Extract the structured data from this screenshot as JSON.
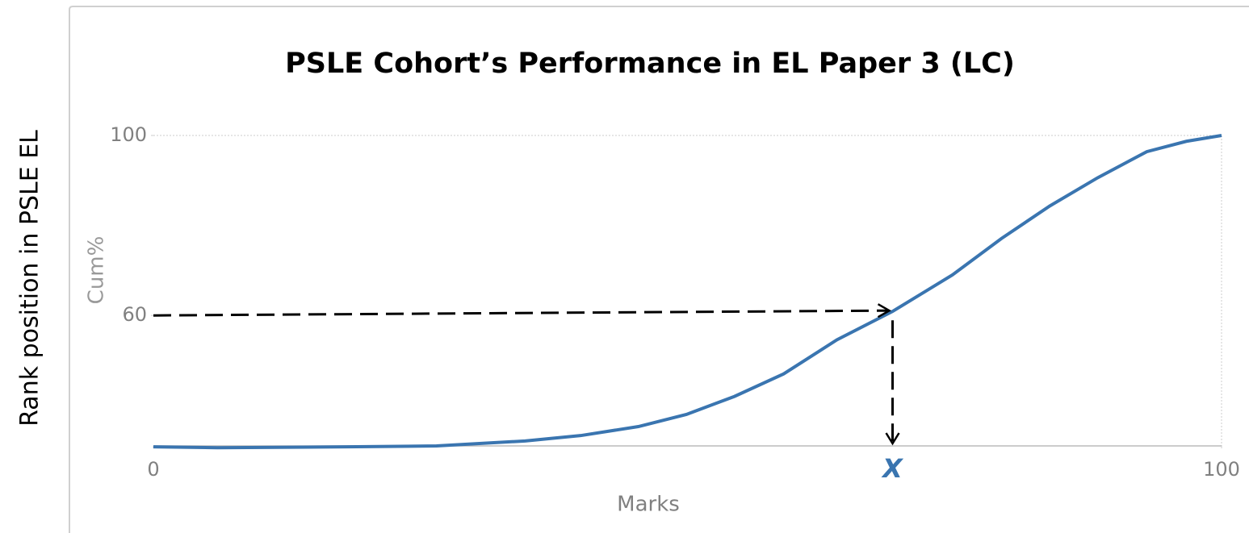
{
  "chart_data": {
    "type": "line",
    "title": "PSLE Cohort’s Performance in EL Paper 3 (LC)",
    "outer_label": "Rank position in PSLE EL",
    "x_label": "Marks",
    "y_label": "Cum%",
    "series": [
      {
        "name": "Cum%",
        "color": "#3a75b0",
        "x": [
          0,
          6,
          18,
          26.5,
          34.8,
          40,
          45.4,
          49.9,
          54.4,
          59,
          64,
          69.2,
          74.8,
          79.4,
          83.9,
          88.4,
          93,
          96.7,
          100
        ],
        "values": [
          30.8,
          30.6,
          30.8,
          31,
          32.1,
          33.3,
          35.3,
          38,
          42,
          47,
          54.6,
          60.9,
          69,
          77.1,
          84.3,
          90.6,
          96.4,
          98.7,
          100
        ]
      }
    ],
    "xlim": [
      0,
      100
    ],
    "xticks": [
      0,
      100
    ],
    "ylim": [
      31,
      100
    ],
    "yticks": [
      60,
      100
    ],
    "annotation": {
      "text": "X",
      "x": 69.2,
      "y": 60,
      "color": "#3a75b0"
    }
  }
}
